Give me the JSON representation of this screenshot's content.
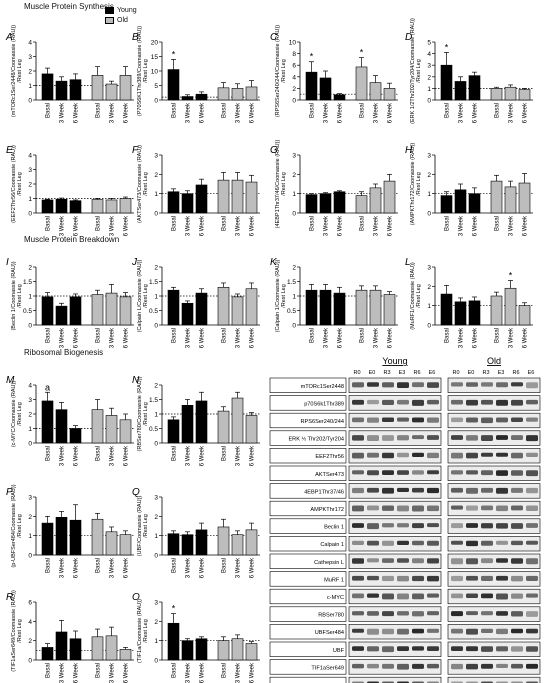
{
  "section_headers": {
    "synthesis": "Muscle Protein Synthesis",
    "breakdown": "Muscle Protein Breakdown",
    "ribosomal": "Ribosomal Biogenesis"
  },
  "legend": {
    "young": "Young",
    "old": "Old"
  },
  "colors": {
    "young": "#000000",
    "old": "#bdbdbd",
    "ref_line": "#000000"
  },
  "x_tick_labels": [
    "Basal",
    "3 Week",
    "6 Week"
  ],
  "x_unit_line2": "/Rest Leg",
  "chart_data": [
    {
      "type": "bar",
      "letter": "A",
      "ylabel": "(mTORc1Ser2448/Coomassie (RAU))",
      "yticks": [
        0,
        1,
        2,
        3,
        4
      ],
      "ylim": [
        0,
        4
      ],
      "young": [
        1.8,
        1.3,
        1.4
      ],
      "young_err": [
        0.4,
        0.3,
        0.4
      ],
      "old": [
        1.7,
        1.1,
        1.7
      ],
      "old_err": [
        0.6,
        0.2,
        0.6
      ],
      "annotations": []
    },
    {
      "type": "bar",
      "letter": "B",
      "ylabel": "(P70S6K1Thr389/Coomassie (RAU))",
      "yticks": [
        0,
        5,
        10,
        15,
        20
      ],
      "ylim": [
        0,
        20
      ],
      "young": [
        10.5,
        1.2,
        2.0
      ],
      "young_err": [
        3.5,
        0.6,
        0.8
      ],
      "old": [
        4.2,
        4.0,
        4.5
      ],
      "old_err": [
        1.8,
        1.6,
        2.2
      ],
      "annotations": [
        {
          "group": "young",
          "index": 0,
          "text": "*"
        }
      ]
    },
    {
      "type": "bar",
      "letter": "C",
      "ylabel": "(RPS6Ser240/244/Coomassie (RAU))",
      "yticks": [
        0,
        2,
        4,
        6,
        8,
        10
      ],
      "ylim": [
        0,
        10
      ],
      "young": [
        4.8,
        3.8,
        0.9
      ],
      "young_err": [
        1.8,
        1.2,
        0.2
      ],
      "old": [
        5.7,
        3.0,
        2.0
      ],
      "old_err": [
        1.6,
        1.2,
        0.9
      ],
      "annotations": [
        {
          "group": "young",
          "index": 0,
          "text": "*"
        },
        {
          "group": "old",
          "index": 0,
          "text": "*"
        }
      ]
    },
    {
      "type": "bar",
      "letter": "D",
      "ylabel": "(ERK 1/2Thr202/Tyr204/Coomassie (RAU))",
      "yticks": [
        0,
        1,
        2,
        3,
        4,
        5
      ],
      "ylim": [
        0,
        5
      ],
      "young": [
        3.0,
        1.6,
        2.1
      ],
      "young_err": [
        1.1,
        0.4,
        0.3
      ],
      "old": [
        1.0,
        1.1,
        0.9
      ],
      "old_err": [
        0.1,
        0.2,
        0.1
      ],
      "annotations": [
        {
          "group": "young",
          "index": 0,
          "text": "*"
        }
      ]
    },
    {
      "type": "bar",
      "letter": "E",
      "ylabel": "(EEF2Thr56/Coomassie (RAU))",
      "yticks": [
        0,
        1,
        2,
        3,
        4
      ],
      "ylim": [
        0,
        4
      ],
      "young": [
        0.9,
        0.95,
        0.85
      ],
      "young_err": [
        0.05,
        0.08,
        0.05
      ],
      "old": [
        0.93,
        0.9,
        1.0
      ],
      "old_err": [
        0.08,
        0.1,
        0.1
      ],
      "annotations": []
    },
    {
      "type": "bar",
      "letter": "F",
      "ylabel": "(AKTSer473/Coomassie (RAU))",
      "yticks": [
        0,
        1,
        2,
        3
      ],
      "ylim": [
        0,
        3
      ],
      "young": [
        1.1,
        1.0,
        1.45
      ],
      "young_err": [
        0.15,
        0.15,
        0.3
      ],
      "old": [
        1.7,
        1.7,
        1.6
      ],
      "old_err": [
        0.4,
        0.4,
        0.35
      ],
      "annotations": []
    },
    {
      "type": "bar",
      "letter": "G",
      "ylabel": "(4EBP1Thr37/46/Coomassie (RAU))",
      "yticks": [
        0,
        1,
        2,
        3
      ],
      "ylim": [
        0,
        3
      ],
      "young": [
        0.95,
        1.0,
        1.1
      ],
      "young_err": [
        0.05,
        0.05,
        0.05
      ],
      "old": [
        0.9,
        1.3,
        1.65
      ],
      "old_err": [
        0.2,
        0.2,
        0.35
      ],
      "annotations": []
    },
    {
      "type": "bar",
      "letter": "H",
      "ylabel": "(AMPKThr172/Coomassie (RAU))",
      "yticks": [
        0,
        1,
        2,
        3
      ],
      "ylim": [
        0,
        3
      ],
      "young": [
        0.9,
        1.2,
        1.0
      ],
      "young_err": [
        0.2,
        0.3,
        0.3
      ],
      "old": [
        1.65,
        1.35,
        1.55
      ],
      "old_err": [
        0.3,
        0.3,
        0.5
      ],
      "annotations": []
    },
    {
      "type": "bar",
      "letter": "I",
      "ylabel": "(Beclin 1/Coomassie (RAU))",
      "yticks": [
        0.0,
        0.5,
        1.0,
        1.5,
        2.0
      ],
      "ylim": [
        0,
        2
      ],
      "young": [
        0.97,
        0.65,
        0.97
      ],
      "young_err": [
        0.15,
        0.1,
        0.1
      ],
      "old": [
        1.05,
        1.1,
        0.97
      ],
      "old_err": [
        0.15,
        0.3,
        0.15
      ],
      "annotations": []
    },
    {
      "type": "bar",
      "letter": "J",
      "ylabel": "(Calpain L/Coomassie (RAU))",
      "yticks": [
        0.0,
        0.5,
        1.0,
        1.5,
        2.0
      ],
      "ylim": [
        0,
        2
      ],
      "young": [
        1.2,
        0.75,
        1.1
      ],
      "young_err": [
        0.1,
        0.08,
        0.15
      ],
      "old": [
        1.3,
        0.97,
        1.25
      ],
      "old_err": [
        0.15,
        0.1,
        0.2
      ],
      "annotations": []
    },
    {
      "type": "bar",
      "letter": "K",
      "ylabel": "(Calpain 1/Coomassie (RAU))",
      "yticks": [
        0.0,
        0.5,
        1.0,
        1.5,
        2.0
      ],
      "ylim": [
        0,
        2
      ],
      "young": [
        1.2,
        1.2,
        1.1
      ],
      "young_err": [
        0.2,
        0.2,
        0.2
      ],
      "old": [
        1.2,
        1.2,
        1.05
      ],
      "old_err": [
        0.15,
        0.15,
        0.1
      ],
      "annotations": []
    },
    {
      "type": "bar",
      "letter": "L",
      "ylabel": "(MuRF1/Coomassie (RAU))",
      "yticks": [
        0,
        1,
        2,
        3
      ],
      "ylim": [
        0,
        3
      ],
      "young": [
        1.6,
        1.2,
        1.25
      ],
      "young_err": [
        0.45,
        0.2,
        0.2
      ],
      "old": [
        1.5,
        1.9,
        1.0
      ],
      "old_err": [
        0.2,
        0.4,
        0.15
      ],
      "annotations": [
        {
          "group": "old",
          "index": 1,
          "text": "*"
        }
      ]
    },
    {
      "type": "bar",
      "letter": "M",
      "ylabel": "(c-MYC/Coomassie (RAU))",
      "yticks": [
        0,
        1,
        2,
        3,
        4
      ],
      "ylim": [
        0,
        4
      ],
      "young": [
        2.9,
        2.3,
        1.0
      ],
      "young_err": [
        0.6,
        0.5,
        0.2
      ],
      "old": [
        2.3,
        1.9,
        1.6
      ],
      "old_err": [
        0.7,
        0.5,
        0.4
      ],
      "annotations": [
        {
          "group": "young",
          "index": 0,
          "text": "a"
        }
      ]
    },
    {
      "type": "bar",
      "letter": "N",
      "ylabel": "(RBSer780/Coomassie (RAU))",
      "yticks": [
        0.0,
        0.5,
        1.0,
        1.5,
        2.0
      ],
      "ylim": [
        0,
        2
      ],
      "young": [
        0.8,
        1.3,
        1.45
      ],
      "young_err": [
        0.1,
        0.2,
        0.3
      ],
      "old": [
        1.1,
        1.55,
        0.95
      ],
      "old_err": [
        0.15,
        0.2,
        0.1
      ],
      "annotations": []
    },
    {
      "type": "bar",
      "letter": "P",
      "ylabel": "(p-UBFSer484/Coomassie (RAU))",
      "yticks": [
        0,
        1,
        2,
        3
      ],
      "ylim": [
        0,
        3
      ],
      "young": [
        1.65,
        1.95,
        1.8
      ],
      "young_err": [
        0.35,
        0.3,
        0.8
      ],
      "old": [
        1.85,
        1.2,
        1.05
      ],
      "old_err": [
        0.3,
        0.25,
        0.2
      ],
      "annotations": []
    },
    {
      "type": "bar",
      "letter": "Q",
      "ylabel": "(UBF/Coomassie (RAU))",
      "yticks": [
        0,
        1,
        2,
        3
      ],
      "ylim": [
        0,
        3
      ],
      "young": [
        1.1,
        1.05,
        1.3
      ],
      "young_err": [
        0.15,
        0.15,
        0.35
      ],
      "old": [
        1.45,
        1.05,
        1.3
      ],
      "old_err": [
        0.4,
        0.2,
        0.35
      ],
      "annotations": []
    },
    {
      "type": "bar",
      "letter": "R",
      "ylabel": "(TIF1aSer649/Coomassie (RAU))",
      "yticks": [
        0,
        2,
        4,
        6
      ],
      "ylim": [
        0,
        6
      ],
      "young": [
        1.3,
        2.9,
        2.2
      ],
      "young_err": [
        0.4,
        1.2,
        0.8
      ],
      "old": [
        2.4,
        2.5,
        1.1
      ],
      "old_err": [
        0.8,
        0.9,
        0.2
      ],
      "annotations": []
    },
    {
      "type": "bar",
      "letter": "O",
      "ylabel": "(TIF1a/Coomassie (RAU))",
      "yticks": [
        0,
        1,
        2,
        3
      ],
      "ylim": [
        0,
        3
      ],
      "young": [
        1.9,
        1.0,
        1.1
      ],
      "young_err": [
        0.5,
        0.1,
        0.1
      ],
      "old": [
        1.0,
        1.1,
        0.85
      ],
      "old_err": [
        0.2,
        0.2,
        0.1
      ],
      "annotations": [
        {
          "group": "young",
          "index": 0,
          "text": "*"
        }
      ]
    }
  ],
  "blot": {
    "group_young": "Young",
    "group_old": "Old",
    "lanes": [
      "R0",
      "E0",
      "R3",
      "E3",
      "R6",
      "E6"
    ],
    "rows": [
      "mTORc1Ser2448",
      "p70S6k1Thr389",
      "RPS6Ser240/244",
      "ERK ½ Thr202/Tyr204",
      "EEF2Thr56",
      "AKTSer473",
      "4EBP1Thr37/46",
      "AMPKThr172",
      "Beclin 1",
      "Calpain 1",
      "Cathepsin L",
      "MuRF 1",
      "c-MYC",
      "RBSer780",
      "UBFSer484",
      "UBF",
      "TIF1aSer649",
      "TIF1a"
    ]
  }
}
